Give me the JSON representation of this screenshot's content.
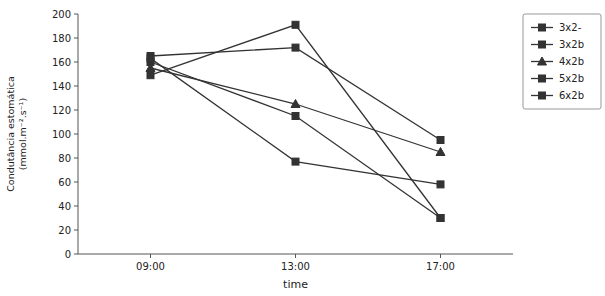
{
  "chart_data": {
    "type": "line",
    "categories": [
      "09:00",
      "13:00",
      "17:00"
    ],
    "series": [
      {
        "name": "3x2-",
        "values": [
          165,
          172,
          95
        ],
        "color": "#333333",
        "marker": "square"
      },
      {
        "name": "3x2b",
        "values": [
          160,
          115,
          30
        ],
        "color": "#333333",
        "marker": "square"
      },
      {
        "name": "4x2b",
        "values": [
          155,
          125,
          85
        ],
        "color": "#333333",
        "marker": "triangle"
      },
      {
        "name": "5x2b",
        "values": [
          163,
          77,
          58
        ],
        "color": "#333333",
        "marker": "square"
      },
      {
        "name": "6x2b",
        "values": [
          149,
          191,
          30
        ],
        "color": "#333333",
        "marker": "square"
      }
    ],
    "xlabel": "time",
    "ylabel": [
      "Condutância estomática",
      "(mmol.m⁻².s⁻¹)"
    ],
    "ylim": [
      0,
      200
    ],
    "yticks": [
      0,
      20,
      40,
      60,
      80,
      100,
      120,
      140,
      160,
      180,
      200
    ],
    "legend": "right",
    "grid": false
  }
}
